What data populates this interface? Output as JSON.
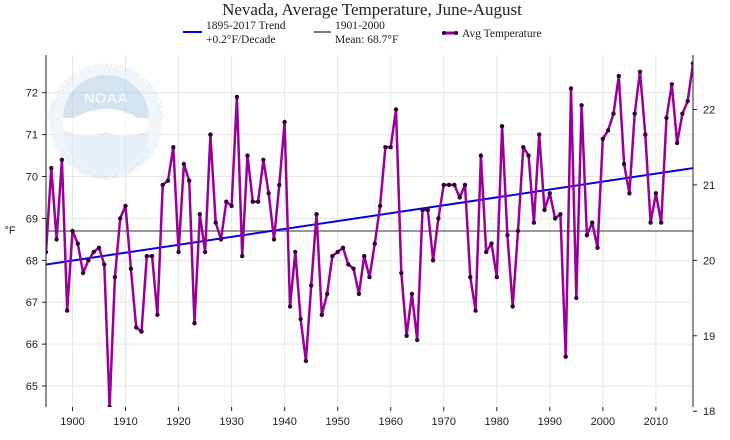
{
  "chart_data": {
    "type": "line",
    "title": "Nevada, Average Temperature, June-August",
    "ylabel": "°F",
    "x_ticks": [
      1900,
      1910,
      1920,
      1930,
      1940,
      1950,
      1960,
      1970,
      1980,
      1990,
      2000,
      2010
    ],
    "y_ticks": [
      65,
      66,
      67,
      68,
      69,
      70,
      71,
      72
    ],
    "y2_ticks": [
      18,
      19,
      20,
      21,
      22
    ],
    "xlim": [
      1895,
      2017
    ],
    "ylim": [
      64.5,
      72.9
    ],
    "grid": true,
    "legend_position": "top",
    "legend": {
      "trend_line1": "1895-2017 Trend",
      "trend_line2": "+0.2°F/Decade",
      "mean_line1": "1901-2000",
      "mean_line2": "Mean: 68.7°F",
      "avg_label": "Avg Temperature"
    },
    "trend": {
      "name": "1895-2017 Trend",
      "x": [
        1895,
        2017
      ],
      "y": [
        67.9,
        70.2
      ],
      "color": "#0000ee"
    },
    "mean": {
      "name": "1901-2000 Mean",
      "value": 68.7,
      "color": "#777777"
    },
    "series": [
      {
        "name": "Avg Temperature",
        "color": "#990099",
        "x": [
          1895,
          1896,
          1897,
          1898,
          1899,
          1900,
          1901,
          1902,
          1903,
          1904,
          1905,
          1906,
          1907,
          1908,
          1909,
          1910,
          1911,
          1912,
          1913,
          1914,
          1915,
          1916,
          1917,
          1918,
          1919,
          1920,
          1921,
          1922,
          1923,
          1924,
          1925,
          1926,
          1927,
          1928,
          1929,
          1930,
          1931,
          1932,
          1933,
          1934,
          1935,
          1936,
          1937,
          1938,
          1939,
          1940,
          1941,
          1942,
          1943,
          1944,
          1945,
          1946,
          1947,
          1948,
          1949,
          1950,
          1951,
          1952,
          1953,
          1954,
          1955,
          1956,
          1957,
          1958,
          1959,
          1960,
          1961,
          1962,
          1963,
          1964,
          1965,
          1966,
          1967,
          1968,
          1969,
          1970,
          1971,
          1972,
          1973,
          1974,
          1975,
          1976,
          1977,
          1978,
          1979,
          1980,
          1981,
          1982,
          1983,
          1984,
          1985,
          1986,
          1987,
          1988,
          1989,
          1990,
          1991,
          1992,
          1993,
          1994,
          1995,
          1996,
          1997,
          1998,
          1999,
          2000,
          2001,
          2002,
          2003,
          2004,
          2005,
          2006,
          2007,
          2008,
          2009,
          2010,
          2011,
          2012,
          2013,
          2014,
          2015,
          2016,
          2017
        ],
        "values": [
          68.2,
          70.2,
          68.5,
          70.4,
          66.8,
          68.7,
          68.4,
          67.7,
          68.0,
          68.2,
          68.3,
          67.9,
          64.5,
          67.6,
          69.0,
          69.3,
          67.8,
          66.4,
          66.3,
          68.1,
          68.1,
          66.7,
          69.8,
          69.9,
          70.7,
          68.2,
          70.3,
          69.9,
          66.5,
          69.1,
          68.2,
          71.0,
          68.9,
          68.5,
          69.4,
          69.3,
          71.9,
          68.1,
          70.5,
          69.4,
          69.4,
          70.4,
          69.6,
          68.5,
          69.8,
          71.3,
          66.9,
          68.2,
          66.6,
          65.6,
          67.4,
          69.1,
          66.7,
          67.2,
          68.1,
          68.2,
          68.3,
          67.9,
          67.8,
          67.2,
          68.1,
          67.6,
          68.4,
          69.3,
          70.7,
          70.7,
          71.6,
          67.7,
          66.2,
          67.2,
          66.1,
          69.2,
          69.2,
          68.0,
          69.0,
          69.8,
          69.8,
          69.8,
          69.5,
          69.8,
          67.6,
          66.8,
          70.5,
          68.2,
          68.4,
          67.6,
          71.2,
          68.6,
          66.9,
          68.7,
          70.7,
          70.5,
          68.9,
          71.0,
          69.2,
          69.6,
          69.0,
          69.1,
          65.7,
          72.1,
          67.1,
          71.7,
          68.6,
          68.9,
          68.3,
          70.9,
          71.1,
          71.5,
          72.4,
          70.3,
          69.6,
          71.5,
          72.5,
          71.0,
          68.9,
          69.6,
          68.9,
          71.4,
          72.2,
          70.8,
          71.5,
          71.8,
          72.7
        ]
      }
    ]
  },
  "watermark": {
    "center_text": "NOAA",
    "ring_top": "NATIONAL OCEANIC AND ATMOSPHERIC ADMINISTRATION",
    "ring_bottom": "U.S. DEPARTMENT OF COMMERCE"
  }
}
